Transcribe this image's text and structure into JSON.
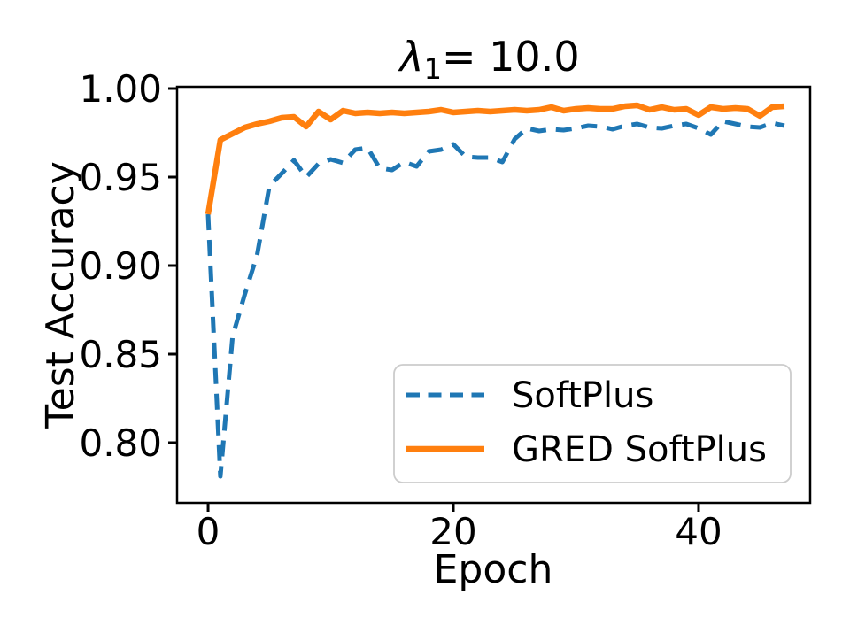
{
  "figure": {
    "background": "#ffffff",
    "title": {
      "symbol": "λ",
      "subscript": "1",
      "suffix": "= 10.0"
    }
  },
  "chart_data": {
    "type": "line",
    "title": "λ_1= 10.0",
    "xlabel": "Epoch",
    "ylabel": "Test Accuracy",
    "xlim": [
      -2.53,
      49.1
    ],
    "ylim": [
      0.766,
      1.001
    ],
    "xticks": [
      0,
      20,
      40
    ],
    "yticks": [
      1.0,
      0.95,
      0.9,
      0.85,
      0.8
    ],
    "grid": false,
    "legend_position": "lower right",
    "axis_color": "#000000",
    "epochs": [
      0,
      1,
      2,
      3,
      4,
      5,
      6,
      7,
      8,
      9,
      10,
      11,
      12,
      13,
      14,
      15,
      16,
      17,
      18,
      19,
      20,
      21,
      22,
      23,
      24,
      25,
      26,
      27,
      28,
      29,
      30,
      31,
      32,
      33,
      34,
      35,
      36,
      37,
      38,
      39,
      40,
      41,
      42,
      43,
      44,
      45,
      46,
      47
    ],
    "series": [
      {
        "name": "SoftPlus",
        "color": "#1f77b4",
        "line_style": "dashed",
        "line_width": 5,
        "values": [
          0.929,
          0.781,
          0.86,
          0.884,
          0.906,
          0.945,
          0.952,
          0.9595,
          0.95,
          0.9575,
          0.96,
          0.958,
          0.9655,
          0.9665,
          0.955,
          0.954,
          0.9585,
          0.956,
          0.9645,
          0.9655,
          0.9685,
          0.9615,
          0.961,
          0.961,
          0.9585,
          0.9715,
          0.9775,
          0.976,
          0.977,
          0.9765,
          0.9775,
          0.979,
          0.9785,
          0.977,
          0.979,
          0.98,
          0.978,
          0.9775,
          0.979,
          0.98,
          0.9775,
          0.974,
          0.9815,
          0.98,
          0.9785,
          0.978,
          0.9805,
          0.979
        ]
      },
      {
        "name": "GRED SoftPlus",
        "color": "#ff7f0e",
        "line_style": "solid",
        "line_width": 6.5,
        "values": [
          0.929,
          0.971,
          0.9745,
          0.978,
          0.98,
          0.9815,
          0.9835,
          0.984,
          0.9785,
          0.987,
          0.9825,
          0.9875,
          0.986,
          0.9865,
          0.986,
          0.9865,
          0.986,
          0.9865,
          0.987,
          0.988,
          0.9865,
          0.987,
          0.9875,
          0.987,
          0.9875,
          0.988,
          0.9875,
          0.988,
          0.9895,
          0.9875,
          0.9885,
          0.989,
          0.9885,
          0.9885,
          0.99,
          0.9905,
          0.988,
          0.9895,
          0.988,
          0.9885,
          0.985,
          0.9895,
          0.9885,
          0.989,
          0.9885,
          0.9845,
          0.9895,
          0.99
        ]
      }
    ]
  },
  "legend": {
    "border_color": "#cccccc",
    "background": "rgba(255,255,255,0.8)"
  }
}
